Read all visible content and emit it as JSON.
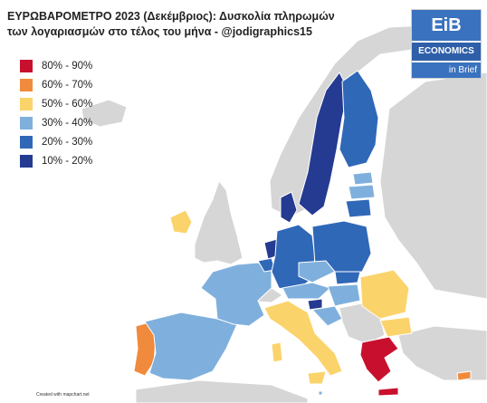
{
  "title_line1": "ΕΥΡΩΒΑΡΟΜΕΤΡΟ 2023 (Δεκέμβριος): Δυσκολία πληρωμών",
  "title_line2": "των λογαριασμών στο τέλος του μήνα - @jodigraphics15",
  "legend": [
    {
      "label": "80% - 90%",
      "color": "#c8102e"
    },
    {
      "label": "60% - 70%",
      "color": "#f08a3c"
    },
    {
      "label": "50% - 60%",
      "color": "#fbd36b"
    },
    {
      "label": "30% - 40%",
      "color": "#7fb0dd"
    },
    {
      "label": "20% - 30%",
      "color": "#3068b8"
    },
    {
      "label": "10% - 20%",
      "color": "#253a91"
    }
  ],
  "logo": {
    "top": "EiB",
    "mid": "ECONOMICS",
    "bottom": "in Brief"
  },
  "credit": "Created with mapchart.net",
  "colors": {
    "non_eu": "#d6d6d6",
    "sea": "#ffffff",
    "border": "#ffffff"
  }
}
